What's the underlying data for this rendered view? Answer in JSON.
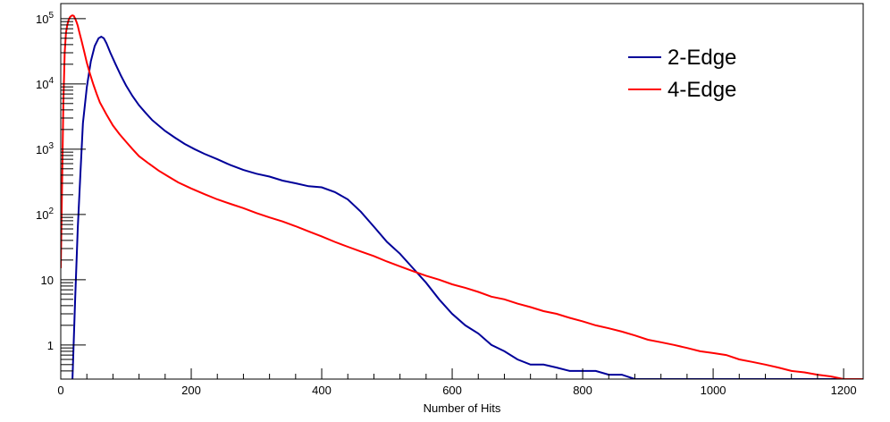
{
  "chart_data": {
    "type": "line",
    "title": "",
    "xlabel": "Number of Hits",
    "ylabel": "",
    "xlim": [
      0,
      1230
    ],
    "ylim": [
      0.3,
      170000
    ],
    "y_scale": "log",
    "grid": false,
    "legend_position": "top-right",
    "x_ticks": [
      {
        "value": 0,
        "label": "0"
      },
      {
        "value": 200,
        "label": "200"
      },
      {
        "value": 400,
        "label": "400"
      },
      {
        "value": 600,
        "label": "600"
      },
      {
        "value": 800,
        "label": "800"
      },
      {
        "value": 1000,
        "label": "1000"
      },
      {
        "value": 1200,
        "label": "1200"
      }
    ],
    "y_ticks": [
      {
        "value": 1,
        "base": "1",
        "exp": ""
      },
      {
        "value": 10,
        "base": "10",
        "exp": ""
      },
      {
        "value": 100,
        "base": "10",
        "exp": "2"
      },
      {
        "value": 1000,
        "base": "10",
        "exp": "3"
      },
      {
        "value": 10000,
        "base": "10",
        "exp": "4"
      },
      {
        "value": 100000,
        "base": "10",
        "exp": "5"
      }
    ],
    "series": [
      {
        "name": "2-Edge",
        "color": "#000099",
        "x": [
          18,
          22,
          26,
          30,
          34,
          40,
          46,
          52,
          58,
          62,
          66,
          70,
          76,
          84,
          92,
          100,
          110,
          120,
          130,
          140,
          150,
          160,
          175,
          190,
          205,
          220,
          240,
          260,
          280,
          300,
          320,
          340,
          360,
          380,
          400,
          420,
          440,
          460,
          480,
          500,
          520,
          540,
          560,
          580,
          600,
          620,
          640,
          660,
          680,
          700,
          720,
          740,
          760,
          780,
          800,
          820,
          840,
          860,
          880,
          900,
          920,
          940,
          960,
          980,
          1000,
          1020,
          1040,
          1060,
          1080,
          1100,
          1120,
          1140,
          1160,
          1180,
          1200,
          1220,
          1230
        ],
        "y": [
          0.3,
          5,
          60,
          400,
          2500,
          9000,
          22000,
          38000,
          50000,
          53000,
          50000,
          42000,
          30000,
          20000,
          13500,
          9500,
          6500,
          4700,
          3600,
          2800,
          2300,
          1900,
          1500,
          1200,
          1000,
          850,
          700,
          570,
          480,
          420,
          380,
          330,
          300,
          270,
          260,
          220,
          170,
          110,
          65,
          38,
          25,
          15,
          9,
          5,
          3,
          2,
          1.5,
          1,
          0.8,
          0.6,
          0.5,
          0.5,
          0.45,
          0.4,
          0.4,
          0.4,
          0.35,
          0.35,
          0.3,
          0.3,
          0.3,
          0.3,
          0.3,
          0.3,
          0.3,
          0.3,
          0.3,
          0.3,
          0.3,
          0.3,
          0.3,
          0.3,
          0.3,
          0.3,
          0.3,
          0.3,
          0.3
        ]
      },
      {
        "name": "4-Edge",
        "color": "#ff0000",
        "x": [
          0,
          2,
          4,
          6,
          8,
          10,
          12,
          14,
          16,
          18,
          20,
          22,
          24,
          26,
          28,
          32,
          36,
          40,
          45,
          50,
          55,
          60,
          70,
          80,
          90,
          100,
          110,
          120,
          135,
          150,
          165,
          180,
          200,
          220,
          240,
          260,
          280,
          300,
          320,
          340,
          360,
          380,
          400,
          420,
          440,
          460,
          480,
          500,
          520,
          540,
          560,
          580,
          600,
          620,
          640,
          660,
          680,
          700,
          720,
          740,
          760,
          780,
          800,
          820,
          840,
          860,
          880,
          900,
          920,
          940,
          960,
          980,
          1000,
          1020,
          1040,
          1060,
          1080,
          1100,
          1120,
          1140,
          1160,
          1180,
          1200,
          1220,
          1230
        ],
        "y": [
          15,
          300,
          5000,
          30000,
          60000,
          80000,
          95000,
          105000,
          110000,
          112000,
          110000,
          100000,
          90000,
          78000,
          65000,
          45000,
          31000,
          21000,
          14000,
          9800,
          7000,
          5200,
          3400,
          2300,
          1700,
          1300,
          1000,
          780,
          600,
          470,
          380,
          310,
          250,
          205,
          170,
          145,
          125,
          105,
          90,
          78,
          66,
          55,
          46,
          38,
          32,
          27,
          23,
          19,
          16,
          13.5,
          11.5,
          10,
          8.5,
          7.5,
          6.5,
          5.5,
          5,
          4.3,
          3.8,
          3.3,
          3,
          2.6,
          2.3,
          2,
          1.8,
          1.6,
          1.4,
          1.2,
          1.1,
          1,
          0.9,
          0.8,
          0.75,
          0.7,
          0.6,
          0.55,
          0.5,
          0.45,
          0.4,
          0.38,
          0.35,
          0.33,
          0.3,
          0.3,
          0.3
        ]
      }
    ]
  }
}
